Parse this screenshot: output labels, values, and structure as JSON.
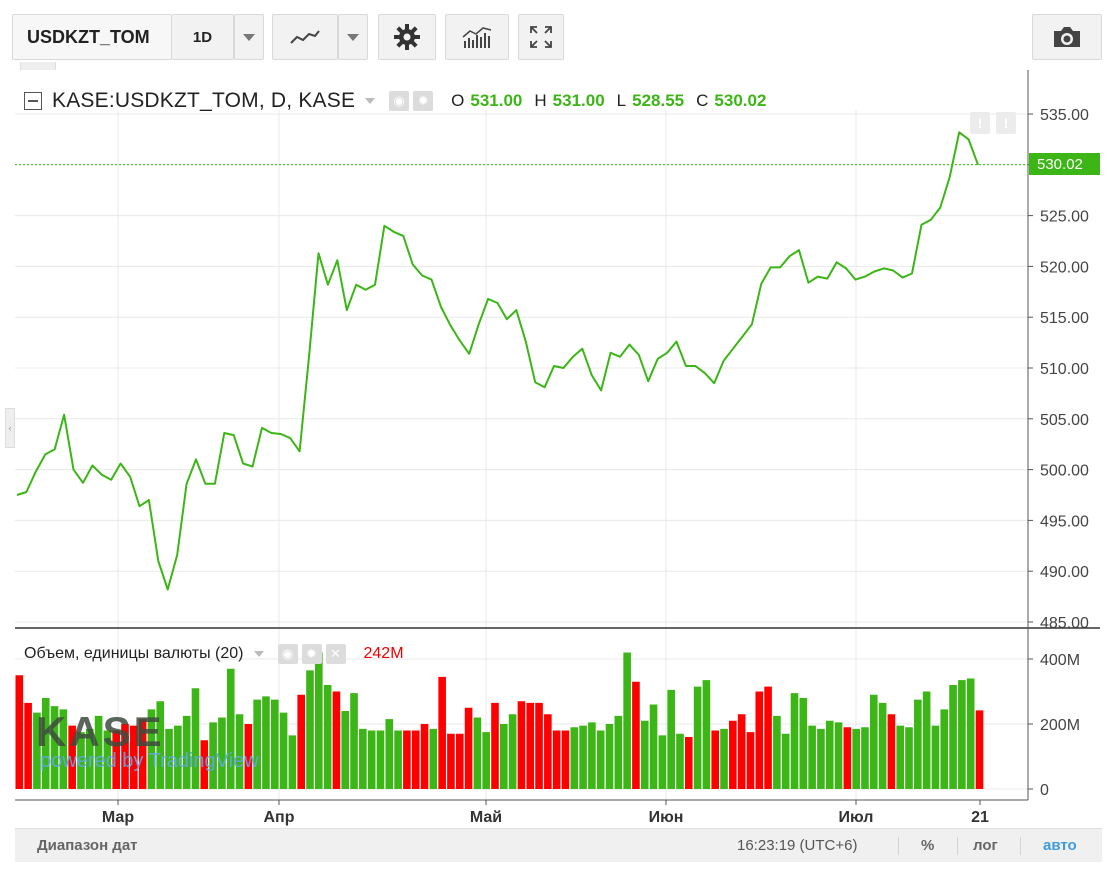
{
  "toolbar": {
    "symbol": "USDKZT_TOM",
    "interval": "1D",
    "icons": [
      "chevron-down-icon",
      "line-chart-icon",
      "gear-icon",
      "indicators-icon",
      "fullscreen-icon",
      "camera-icon"
    ]
  },
  "legend": {
    "title": "KASE:USDKZT_TOM, D, KASE",
    "o_label": "O",
    "o_value": "531.00",
    "h_label": "H",
    "h_value": "531.00",
    "l_label": "L",
    "l_value": "528.55",
    "c_label": "C",
    "c_value": "530.02"
  },
  "volume_legend": {
    "title": "Объем, единицы валюты (20)",
    "value": "242M"
  },
  "price_tag": "530.02",
  "watermark": {
    "logo": "KASE",
    "powered": "powered by TradingView"
  },
  "bottom": {
    "range": "Диапазон дат",
    "time": "16:23:19 (UTC+6)",
    "percent": "%",
    "log": "лог",
    "auto": "авто"
  },
  "colors": {
    "up": "#3cb516",
    "down": "#ff0000",
    "line": "#3cb516",
    "grid": "#e9e9e9"
  },
  "chart_data": [
    {
      "type": "line",
      "series": [
        {
          "values": [
            497.5,
            497.8,
            499.8,
            501.5,
            502.0,
            505.4,
            500.0,
            498.7,
            500.4,
            499.5,
            499.0,
            500.6,
            499.3,
            496.4,
            497.0,
            491.0,
            488.2,
            491.6,
            498.6,
            501.0,
            498.6,
            498.6,
            503.6,
            503.4,
            500.6,
            500.3,
            504.1,
            503.6,
            503.5,
            503.1,
            501.8,
            511.2,
            521.3,
            518.2,
            520.6,
            515.7,
            518.2,
            517.7,
            518.2,
            524.0,
            523.4,
            523.0,
            520.2,
            519.1,
            518.7,
            516.0,
            514.2,
            512.7,
            511.4,
            514.3,
            516.8,
            516.4,
            514.8,
            515.7,
            512.6,
            508.6,
            508.1,
            510.2,
            510.0,
            511.1,
            511.9,
            509.3,
            507.8,
            511.5,
            511.1,
            512.3,
            511.3,
            508.7,
            510.9,
            511.5,
            512.6,
            510.2,
            510.2,
            509.5,
            508.5,
            510.7,
            511.9,
            513.1,
            514.3,
            518.3,
            519.9,
            519.9,
            521.0,
            521.6,
            518.4,
            519.0,
            518.8,
            520.4,
            519.8,
            518.7,
            519.0,
            519.5,
            519.8,
            519.6,
            518.9,
            519.3,
            524.1,
            524.6,
            525.8,
            528.8,
            533.2,
            532.5,
            530.0
          ]
        }
      ],
      "x_tick_labels": [
        "Мар",
        "Апр",
        "Май",
        "Июн",
        "Июл",
        "21"
      ],
      "y_ticks": [
        "485.00",
        "490.00",
        "495.00",
        "500.00",
        "505.00",
        "510.00",
        "515.00",
        "520.00",
        "525.00",
        "530.00",
        "535.00"
      ],
      "ylim": [
        484.5,
        535.5
      ],
      "last_value": 530.02,
      "grid": true
    },
    {
      "type": "bar",
      "series": [
        {
          "values": [
            350,
            265,
            235,
            280,
            255,
            245,
            195,
            175,
            185,
            225,
            180,
            180,
            200,
            195,
            215,
            245,
            270,
            185,
            195,
            225,
            310,
            150,
            205,
            220,
            370,
            230,
            200,
            275,
            285,
            275,
            235,
            165,
            290,
            365,
            420,
            320,
            300,
            240,
            295,
            185,
            180,
            180,
            215,
            180,
            180,
            180,
            200,
            185,
            345,
            170,
            170,
            250,
            220,
            175,
            265,
            200,
            230,
            270,
            265,
            265,
            230,
            180,
            180,
            190,
            195,
            205,
            180,
            200,
            225,
            420,
            330,
            210,
            260,
            165,
            305,
            170,
            160,
            315,
            335,
            180,
            185,
            210,
            230,
            175,
            300,
            315,
            225,
            170,
            295,
            280,
            195,
            185,
            210,
            205,
            190,
            185,
            190,
            290,
            265,
            230,
            195,
            190,
            275,
            300,
            195,
            245,
            320,
            335,
            340,
            242
          ]
        }
      ],
      "up_down": [
        0,
        0,
        1,
        1,
        1,
        1,
        0,
        1,
        1,
        1,
        1,
        0,
        0,
        0,
        0,
        1,
        1,
        1,
        1,
        1,
        1,
        0,
        1,
        1,
        1,
        1,
        0,
        1,
        1,
        1,
        1,
        1,
        0,
        1,
        1,
        1,
        0,
        1,
        1,
        1,
        1,
        1,
        1,
        1,
        0,
        0,
        0,
        1,
        0,
        0,
        0,
        0,
        1,
        1,
        0,
        1,
        1,
        0,
        0,
        0,
        0,
        0,
        0,
        1,
        1,
        1,
        1,
        1,
        1,
        1,
        0,
        1,
        1,
        1,
        1,
        1,
        0,
        1,
        1,
        0,
        1,
        0,
        0,
        0,
        0,
        0,
        1,
        1,
        1,
        1,
        1,
        1,
        1,
        1,
        0,
        1,
        1,
        1,
        1,
        0,
        1,
        1,
        1,
        1,
        1,
        1,
        1,
        1,
        1,
        0
      ],
      "y_ticks": [
        "0",
        "200M",
        "400M"
      ],
      "ylim": [
        0,
        440
      ],
      "unit": "M",
      "grid": true
    }
  ]
}
